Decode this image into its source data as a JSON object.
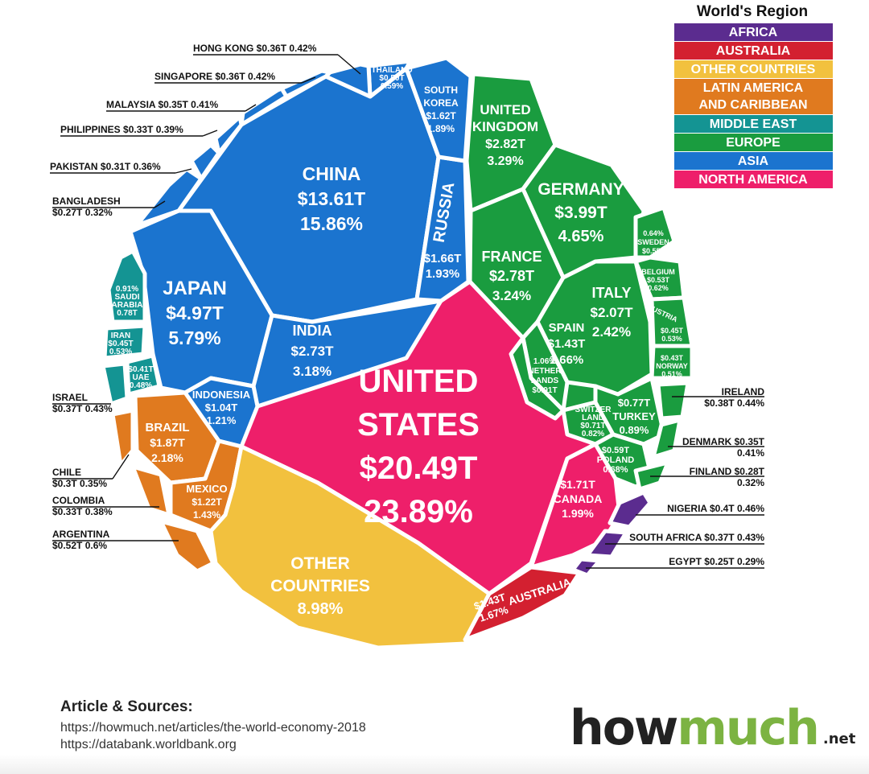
{
  "legend": {
    "title": "World's Region",
    "items": [
      {
        "label": "AFRICA",
        "color": "#5b2c8f"
      },
      {
        "label": "AUSTRALIA",
        "color": "#d32030"
      },
      {
        "label": "OTHER COUNTRIES",
        "color": "#f2c13e"
      },
      {
        "label": "LATIN AMERICA AND CARIBBEAN",
        "color": "#e07a1f"
      },
      {
        "label": "MIDDLE EAST",
        "color": "#149493"
      },
      {
        "label": "EUROPE",
        "color": "#1a9c3f"
      },
      {
        "label": "ASIA",
        "color": "#1b74cf"
      },
      {
        "label": "NORTH AMERICA",
        "color": "#ee1f6a"
      }
    ]
  },
  "chart_data": {
    "type": "voronoi-treemap",
    "unit": "$T (GDP 2018), % of world",
    "cells": [
      {
        "name": "UNITED STATES",
        "value": "$20.49T",
        "share": 23.89,
        "region": "NORTH AMERICA"
      },
      {
        "name": "CANADA",
        "value": "$1.71T",
        "share": 1.99,
        "region": "NORTH AMERICA"
      },
      {
        "name": "CHINA",
        "value": "$13.61T",
        "share": 15.86,
        "region": "ASIA"
      },
      {
        "name": "JAPAN",
        "value": "$4.97T",
        "share": 5.79,
        "region": "ASIA"
      },
      {
        "name": "INDIA",
        "value": "$2.73T",
        "share": 3.18,
        "region": "ASIA"
      },
      {
        "name": "RUSSIA",
        "value": "$1.66T",
        "share": 1.93,
        "region": "ASIA"
      },
      {
        "name": "SOUTH KOREA",
        "value": "$1.62T",
        "share": 1.89,
        "region": "ASIA"
      },
      {
        "name": "INDONESIA",
        "value": "$1.04T",
        "share": 1.21,
        "region": "ASIA"
      },
      {
        "name": "THAILAND",
        "value": "$0.50T",
        "share": 0.59,
        "region": "ASIA"
      },
      {
        "name": "HONG KONG",
        "value": "$0.36T",
        "share": 0.42,
        "region": "ASIA"
      },
      {
        "name": "SINGAPORE",
        "value": "$0.36T",
        "share": 0.42,
        "region": "ASIA"
      },
      {
        "name": "MALAYSIA",
        "value": "$0.35T",
        "share": 0.41,
        "region": "ASIA"
      },
      {
        "name": "PHILIPPINES",
        "value": "$0.33T",
        "share": 0.39,
        "region": "ASIA"
      },
      {
        "name": "PAKISTAN",
        "value": "$0.31T",
        "share": 0.36,
        "region": "ASIA"
      },
      {
        "name": "BANGLADESH",
        "value": "$0.27T",
        "share": 0.32,
        "region": "ASIA"
      },
      {
        "name": "GERMANY",
        "value": "$3.99T",
        "share": 4.65,
        "region": "EUROPE"
      },
      {
        "name": "UNITED KINGDOM",
        "value": "$2.82T",
        "share": 3.29,
        "region": "EUROPE"
      },
      {
        "name": "FRANCE",
        "value": "$2.78T",
        "share": 3.24,
        "region": "EUROPE"
      },
      {
        "name": "ITALY",
        "value": "$2.07T",
        "share": 2.42,
        "region": "EUROPE"
      },
      {
        "name": "SPAIN",
        "value": "$1.43T",
        "share": 1.66,
        "region": "EUROPE"
      },
      {
        "name": "NETHERLANDS",
        "value": "$0.91T",
        "share": 1.06,
        "region": "EUROPE"
      },
      {
        "name": "SWITZERLAND",
        "value": "$0.71T",
        "share": 0.82,
        "region": "EUROPE"
      },
      {
        "name": "TURKEY",
        "value": "$0.77T",
        "share": 0.89,
        "region": "EUROPE"
      },
      {
        "name": "POLAND",
        "value": "$0.59T",
        "share": 0.68,
        "region": "EUROPE"
      },
      {
        "name": "SWEDEN",
        "value": "$0.55T",
        "share": 0.64,
        "region": "EUROPE"
      },
      {
        "name": "BELGIUM",
        "value": "$0.53T",
        "share": 0.62,
        "region": "EUROPE"
      },
      {
        "name": "AUSTRIA",
        "value": "$0.45T",
        "share": 0.53,
        "region": "EUROPE"
      },
      {
        "name": "NORWAY",
        "value": "$0.43T",
        "share": 0.51,
        "region": "EUROPE"
      },
      {
        "name": "IRELAND",
        "value": "$0.38T",
        "share": 0.44,
        "region": "EUROPE"
      },
      {
        "name": "DENMARK",
        "value": "$0.35T",
        "share": 0.41,
        "region": "EUROPE"
      },
      {
        "name": "FINLAND",
        "value": "$0.28T",
        "share": 0.32,
        "region": "EUROPE"
      },
      {
        "name": "SAUDI ARABIA",
        "value": "0.78T",
        "share": 0.91,
        "region": "MIDDLE EAST"
      },
      {
        "name": "IRAN",
        "value": "$0.45T",
        "share": 0.53,
        "region": "MIDDLE EAST"
      },
      {
        "name": "UAE",
        "value": "$0.41T",
        "share": 0.48,
        "region": "MIDDLE EAST"
      },
      {
        "name": "ISRAEL",
        "value": "$0.37T",
        "share": 0.43,
        "region": "MIDDLE EAST"
      },
      {
        "name": "BRAZIL",
        "value": "$1.87T",
        "share": 2.18,
        "region": "LATIN AMERICA AND CARIBBEAN"
      },
      {
        "name": "MEXICO",
        "value": "$1.22T",
        "share": 1.43,
        "region": "LATIN AMERICA AND CARIBBEAN"
      },
      {
        "name": "ARGENTINA",
        "value": "$0.52T",
        "share": 0.6,
        "region": "LATIN AMERICA AND CARIBBEAN"
      },
      {
        "name": "COLOMBIA",
        "value": "$0.33T",
        "share": 0.38,
        "region": "LATIN AMERICA AND CARIBBEAN"
      },
      {
        "name": "CHILE",
        "value": "$0.3T",
        "share": 0.35,
        "region": "LATIN AMERICA AND CARIBBEAN"
      },
      {
        "name": "AUSTRALIA",
        "value": "$1.43T",
        "share": 1.67,
        "region": "AUSTRALIA"
      },
      {
        "name": "NIGERIA",
        "value": "$0.4T",
        "share": 0.46,
        "region": "AFRICA"
      },
      {
        "name": "SOUTH AFRICA",
        "value": "$0.37T",
        "share": 0.43,
        "region": "AFRICA"
      },
      {
        "name": "EGYPT",
        "value": "$0.25T",
        "share": 0.29,
        "region": "AFRICA"
      },
      {
        "name": "OTHER COUNTRIES",
        "value": "",
        "share": 8.98,
        "region": "OTHER COUNTRIES"
      }
    ]
  },
  "cell_labels": {
    "us": [
      "UNITED",
      "STATES",
      "$20.49T",
      "23.89%"
    ],
    "china": [
      "CHINA",
      "$13.61T",
      "15.86%"
    ],
    "japan": [
      "JAPAN",
      "$4.97T",
      "5.79%"
    ],
    "india": [
      "INDIA",
      "$2.73T",
      "3.18%"
    ],
    "russia": [
      "RUSSIA"
    ],
    "russia_val": [
      "$1.66T",
      "1.93%"
    ],
    "south_korea": [
      "SOUTH",
      "KOREA",
      "$1.62T",
      "1.89%"
    ],
    "thailand": [
      "THAILAND",
      "$0.50T",
      "0.59%"
    ],
    "indonesia": [
      "INDONESIA",
      "$1.04T",
      "1.21%"
    ],
    "uk": [
      "UNITED",
      "KINGDOM",
      "$2.82T",
      "3.29%"
    ],
    "germany": [
      "GERMANY",
      "$3.99T",
      "4.65%"
    ],
    "france": [
      "FRANCE",
      "$2.78T",
      "3.24%"
    ],
    "italy": [
      "ITALY",
      "$2.07T",
      "2.42%"
    ],
    "spain": [
      "SPAIN",
      "$1.43T",
      "1.66%"
    ],
    "netherlands": [
      "1.06%",
      "NETHER",
      "LANDS",
      "$0.91T"
    ],
    "switzerland": [
      "SWITZER",
      "LAND",
      "$0.71T",
      "0.82%"
    ],
    "turkey": [
      "$0.77T",
      "TURKEY",
      "0.89%"
    ],
    "poland": [
      "$0.59T",
      "POLAND",
      "0.68%"
    ],
    "sweden": [
      "0.64%",
      "SWEDEN",
      "$0.55T"
    ],
    "belgium": [
      "BELGIUM",
      "$0.53T",
      "0.62%"
    ],
    "austria": [
      "AUSTRIA"
    ],
    "austria_val": [
      "$0.45T",
      "0.53%"
    ],
    "norway": [
      "$0.43T",
      "NORWAY",
      "0.51%"
    ],
    "saudi": [
      "0.91%",
      "SAUDI",
      "ARABIA",
      "0.78T"
    ],
    "iran": [
      "IRAN",
      "$0.45T",
      "0.53%"
    ],
    "uae": [
      "$0.41T",
      "UAE",
      "0.48%"
    ],
    "brazil": [
      "BRAZIL",
      "$1.87T",
      "2.18%"
    ],
    "mexico": [
      "MEXICO",
      "$1.22T",
      "1.43%"
    ],
    "canada": [
      "$1.71T",
      "CANADA",
      "1.99%"
    ],
    "australia": [
      "AUSTRALIA"
    ],
    "australia_val": [
      "$1.43T",
      "1.67%"
    ],
    "other": [
      "OTHER",
      "COUNTRIES",
      "8.98%"
    ]
  },
  "callouts": {
    "hong_kong": [
      "HONG KONG  $0.36T  0.42%"
    ],
    "singapore": [
      "SINGAPORE $0.36T  0.42%"
    ],
    "malaysia": [
      "MALAYSIA  $0.35T  0.41%"
    ],
    "philippines": [
      "PHILIPPINES $0.33T  0.39%"
    ],
    "pakistan": [
      "PAKISTAN  $0.31T  0.36%"
    ],
    "bangladesh": [
      "BANGLADESH",
      "$0.27T  0.32%"
    ],
    "israel": [
      "ISRAEL",
      "$0.37T  0.43%"
    ],
    "chile": [
      "CHILE",
      "$0.3T  0.35%"
    ],
    "colombia": [
      "COLOMBIA",
      "$0.33T  0.38%"
    ],
    "argentina": [
      "ARGENTINA",
      "$0.52T  0.6%"
    ],
    "ireland": [
      "IRELAND",
      "$0.38T  0.44%"
    ],
    "denmark": [
      "DENMARK  $0.35T",
      "0.41%"
    ],
    "finland": [
      "FINLAND  $0.28T",
      "0.32%"
    ],
    "nigeria": [
      "NIGERIA  $0.4T  0.46%"
    ],
    "south_africa": [
      "SOUTH AFRICA  $0.37T  0.43%"
    ],
    "egypt": [
      "EGYPT  $0.25T  0.29%"
    ]
  },
  "sources": {
    "title": "Article & Sources:",
    "line1": "https://howmuch.net/articles/the-world-economy-2018",
    "line2": "https://databank.worldbank.org"
  },
  "logo": {
    "part1": "how",
    "part2": "much",
    "part3": ".net"
  }
}
